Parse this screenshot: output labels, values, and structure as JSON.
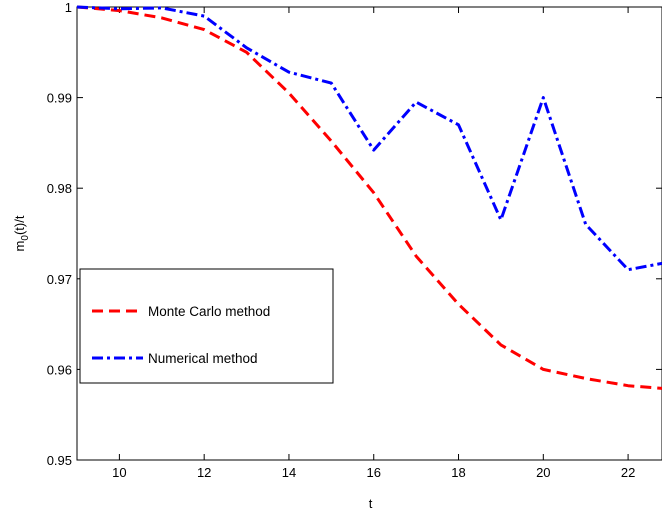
{
  "chart_data": {
    "type": "line",
    "xlabel": "t",
    "ylabel": {
      "base": "m",
      "sub": "0",
      "rest": "(t)/t"
    },
    "xlim": [
      9,
      22.8
    ],
    "ylim": [
      0.95,
      1.0
    ],
    "xticks": [
      10,
      12,
      14,
      16,
      18,
      20,
      22
    ],
    "yticks": [
      {
        "value": 0.95,
        "label": "0.95"
      },
      {
        "value": 0.96,
        "label": "0.96"
      },
      {
        "value": 0.97,
        "label": "0.97"
      },
      {
        "value": 0.98,
        "label": "0.98"
      },
      {
        "value": 0.99,
        "label": "0.99"
      },
      {
        "value": 1.0,
        "label": "1"
      }
    ],
    "grid": false,
    "legend_position": "left",
    "series": [
      {
        "name": "Monte Carlo method",
        "color": "#ff0000",
        "dash": "dashed",
        "points": [
          [
            9,
            1.0
          ],
          [
            10,
            0.9996
          ],
          [
            11,
            0.9988
          ],
          [
            12,
            0.9975
          ],
          [
            13,
            0.995
          ],
          [
            14,
            0.9905
          ],
          [
            15,
            0.9852
          ],
          [
            16,
            0.9795
          ],
          [
            17,
            0.9725
          ],
          [
            18,
            0.9672
          ],
          [
            19,
            0.9627
          ],
          [
            20,
            0.96
          ],
          [
            21,
            0.959
          ],
          [
            22,
            0.9582
          ],
          [
            22.8,
            0.9579
          ]
        ]
      },
      {
        "name": "Numerical method",
        "color": "#0000ff",
        "dash": "dashdot",
        "points": [
          [
            9,
            1.0
          ],
          [
            10,
            0.9998
          ],
          [
            11,
            0.9999
          ],
          [
            12,
            0.999
          ],
          [
            13,
            0.9955
          ],
          [
            14,
            0.9928
          ],
          [
            15,
            0.9916
          ],
          [
            16,
            0.9842
          ],
          [
            17,
            0.9895
          ],
          [
            18,
            0.987
          ],
          [
            19,
            0.9765
          ],
          [
            20,
            0.99
          ],
          [
            21,
            0.976
          ],
          [
            22,
            0.971
          ],
          [
            22.8,
            0.9717
          ]
        ]
      }
    ]
  }
}
